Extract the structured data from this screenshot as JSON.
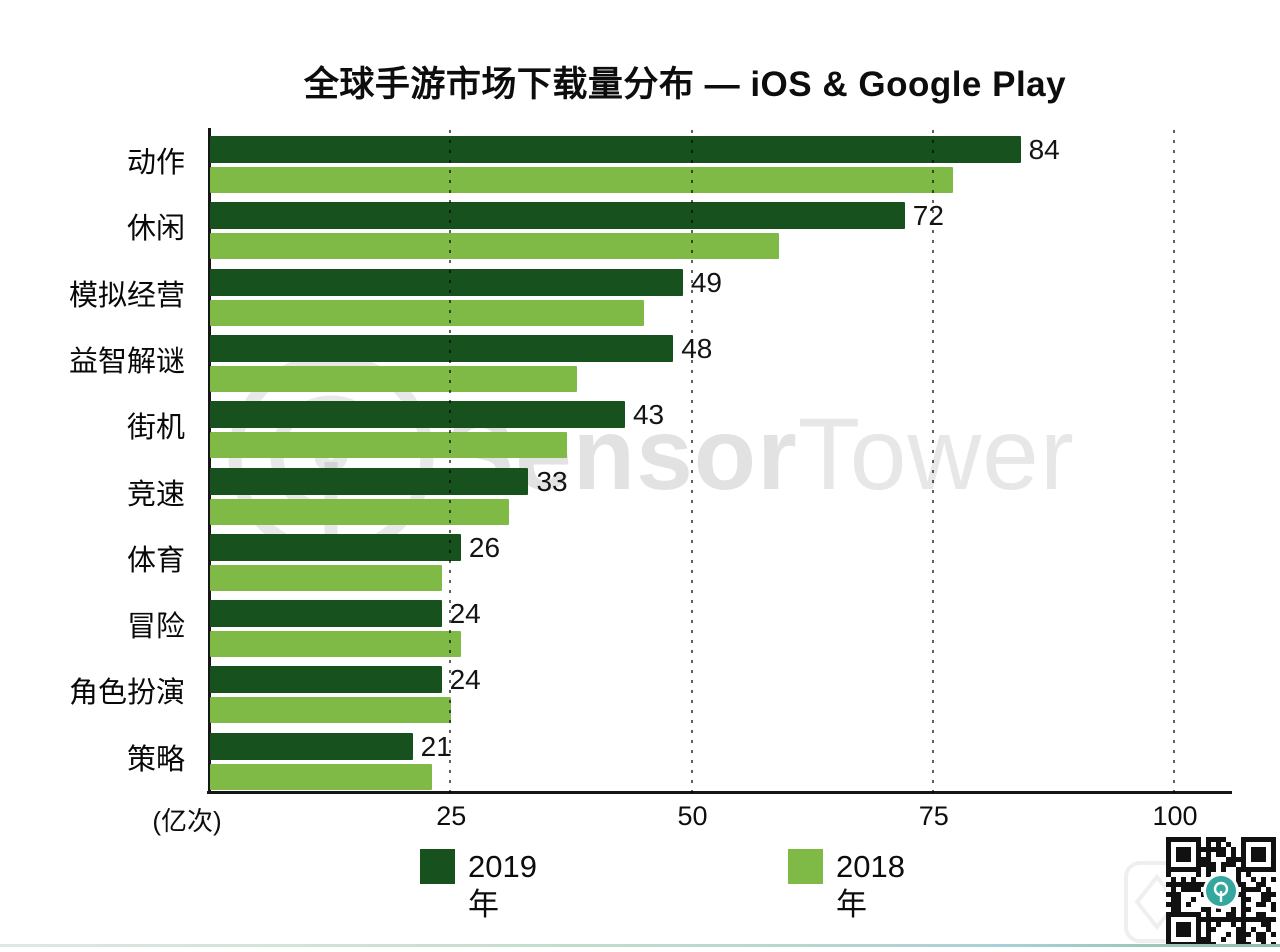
{
  "title": "全球手游市场下载量分布 — iOS & Google Play",
  "watermark": {
    "brand_bold": "Sensor",
    "brand_light": "Tower"
  },
  "axis": {
    "unit_label": "(亿次)",
    "tick_labels": [
      "25",
      "50",
      "75",
      "100"
    ]
  },
  "legend": {
    "items": [
      {
        "label": "2019年",
        "color": "#17521e"
      },
      {
        "label": "2018年",
        "color": "#7eba45"
      }
    ]
  },
  "qr": {
    "name": "sensortower-qr-code",
    "center_color": "#34a79f"
  },
  "colors": {
    "bar_2019": "#17521e",
    "bar_2018": "#7eba45",
    "axis": "#161616",
    "watermark_gray": "#dedede"
  },
  "chart_data": {
    "type": "bar",
    "orientation": "horizontal",
    "title": "全球手游市场下载量分布 — iOS & Google Play",
    "xlabel": "(亿次)",
    "ylabel": "",
    "xlim": [
      0,
      100
    ],
    "x_ticks": [
      25,
      50,
      75,
      100
    ],
    "grid": "dotted-vertical",
    "legend_position": "bottom",
    "categories": [
      "动作",
      "休闲",
      "模拟经营",
      "益智解谜",
      "街机",
      "竞速",
      "体育",
      "冒险",
      "角色扮演",
      "策略"
    ],
    "series": [
      {
        "name": "2019年",
        "color": "#17521e",
        "labeled": true,
        "values": [
          84,
          72,
          49,
          48,
          43,
          33,
          26,
          24,
          24,
          21
        ]
      },
      {
        "name": "2018年",
        "color": "#7eba45",
        "labeled": false,
        "values": [
          77,
          59,
          45,
          38,
          37,
          31,
          24,
          26,
          25,
          23
        ]
      }
    ]
  }
}
